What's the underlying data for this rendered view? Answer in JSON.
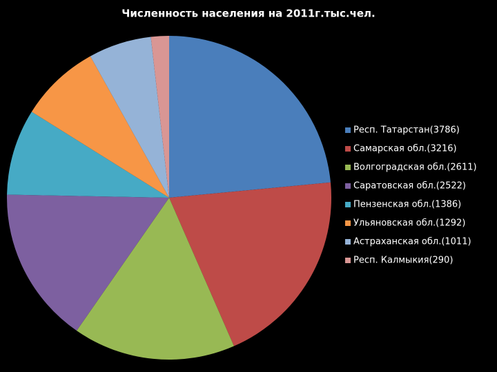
{
  "chart_data": {
    "type": "pie",
    "title": "Численность населения на 2011г.тыс.чел.",
    "categories": [
      "Респ. Татарстан(3786)",
      "Самарская обл.(3216)",
      "Волгоградская обл.(2611)",
      "Саратовская обл.(2522)",
      "Пензенская обл.(1386)",
      "Ульяновская обл.(1292)",
      "Астраханская обл.(1011)",
      "Респ. Калмыкия(290)"
    ],
    "values": [
      3786,
      3216,
      2611,
      2522,
      1386,
      1292,
      1011,
      290
    ],
    "colors": [
      "#4a7ebb",
      "#be4b48",
      "#98b954",
      "#7d60a0",
      "#46aac5",
      "#f79646",
      "#95b3d7",
      "#d99694"
    ],
    "legend": "right"
  }
}
